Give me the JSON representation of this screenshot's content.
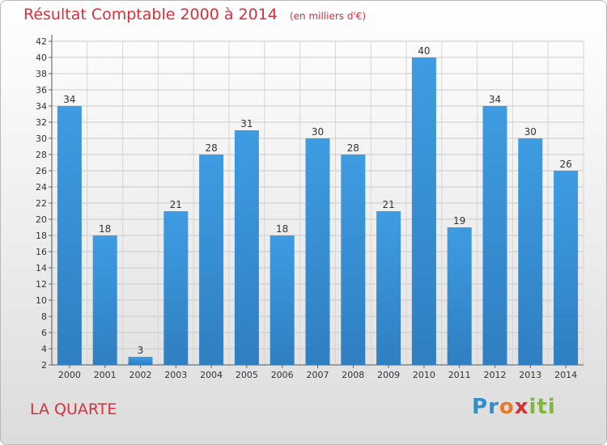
{
  "header": {
    "title": "Résultat Comptable 2000 à 2014",
    "subtitle": "(en milliers d'€)"
  },
  "footer": {
    "commune": "LA QUARTE",
    "logo_letters": [
      "P",
      "r",
      "o",
      "x",
      "i",
      "t",
      "i"
    ],
    "logo_colors": [
      "#2f8ecb",
      "#2f8ecb",
      "#e8782a",
      "#d6303a",
      "#7fb63c",
      "#7fb63c",
      "#7fb63c"
    ]
  },
  "chart_data": {
    "type": "bar",
    "title": "Résultat Comptable 2000 à 2014",
    "subtitle": "(en milliers d'€)",
    "categories": [
      "2000",
      "2001",
      "2002",
      "2003",
      "2004",
      "2005",
      "2006",
      "2007",
      "2008",
      "2009",
      "2010",
      "2011",
      "2012",
      "2013",
      "2014"
    ],
    "values": [
      34,
      18,
      3,
      21,
      28,
      31,
      18,
      30,
      28,
      21,
      40,
      19,
      34,
      30,
      26
    ],
    "ylim": [
      2,
      42
    ],
    "yticks": [
      2,
      4,
      6,
      8,
      10,
      12,
      14,
      16,
      18,
      20,
      22,
      24,
      26,
      28,
      30,
      32,
      34,
      36,
      38,
      40,
      42
    ],
    "grid": true,
    "bar_color": "#3f9ce2",
    "bar_color_dark": "#2f7fc1"
  }
}
